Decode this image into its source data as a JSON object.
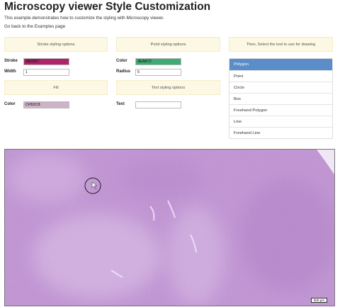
{
  "page": {
    "title": "Microscopy viewer Style Customization",
    "description": "This example demonstrates how to customize the styling with Microscopy viewer.",
    "back_link": "Go back to the Examples page"
  },
  "panels": {
    "stroke": "Stroke styling options",
    "point": "Point styling options",
    "tool": "Then, Select the tool to use for drawing",
    "fill": "Fill",
    "text": "Text styling options"
  },
  "stroke": {
    "color_label": "Stroke",
    "color_value": "AB2567",
    "color_hex": "#ab2567",
    "width_label": "Width",
    "width_value": "1"
  },
  "point": {
    "color_label": "Color",
    "color_value": "3EAB72",
    "color_hex": "#3eab72",
    "radius_label": "Radius",
    "radius_value": "5"
  },
  "fill": {
    "color_label": "Color",
    "color_value": "CFB2C8",
    "color_hex": "#cfb2c8"
  },
  "text": {
    "label": "Text",
    "value": ""
  },
  "tools": {
    "active_color": "#5b8ec8",
    "items": [
      {
        "label": "Polygon"
      },
      {
        "label": "Point"
      },
      {
        "label": "Circle"
      },
      {
        "label": "Box"
      },
      {
        "label": "Freehand Polygon"
      },
      {
        "label": "Line"
      },
      {
        "label": "Freehand Line"
      }
    ]
  },
  "viewer": {
    "scale_label": "500 µm",
    "tissue_color": "#c9a3d9"
  }
}
